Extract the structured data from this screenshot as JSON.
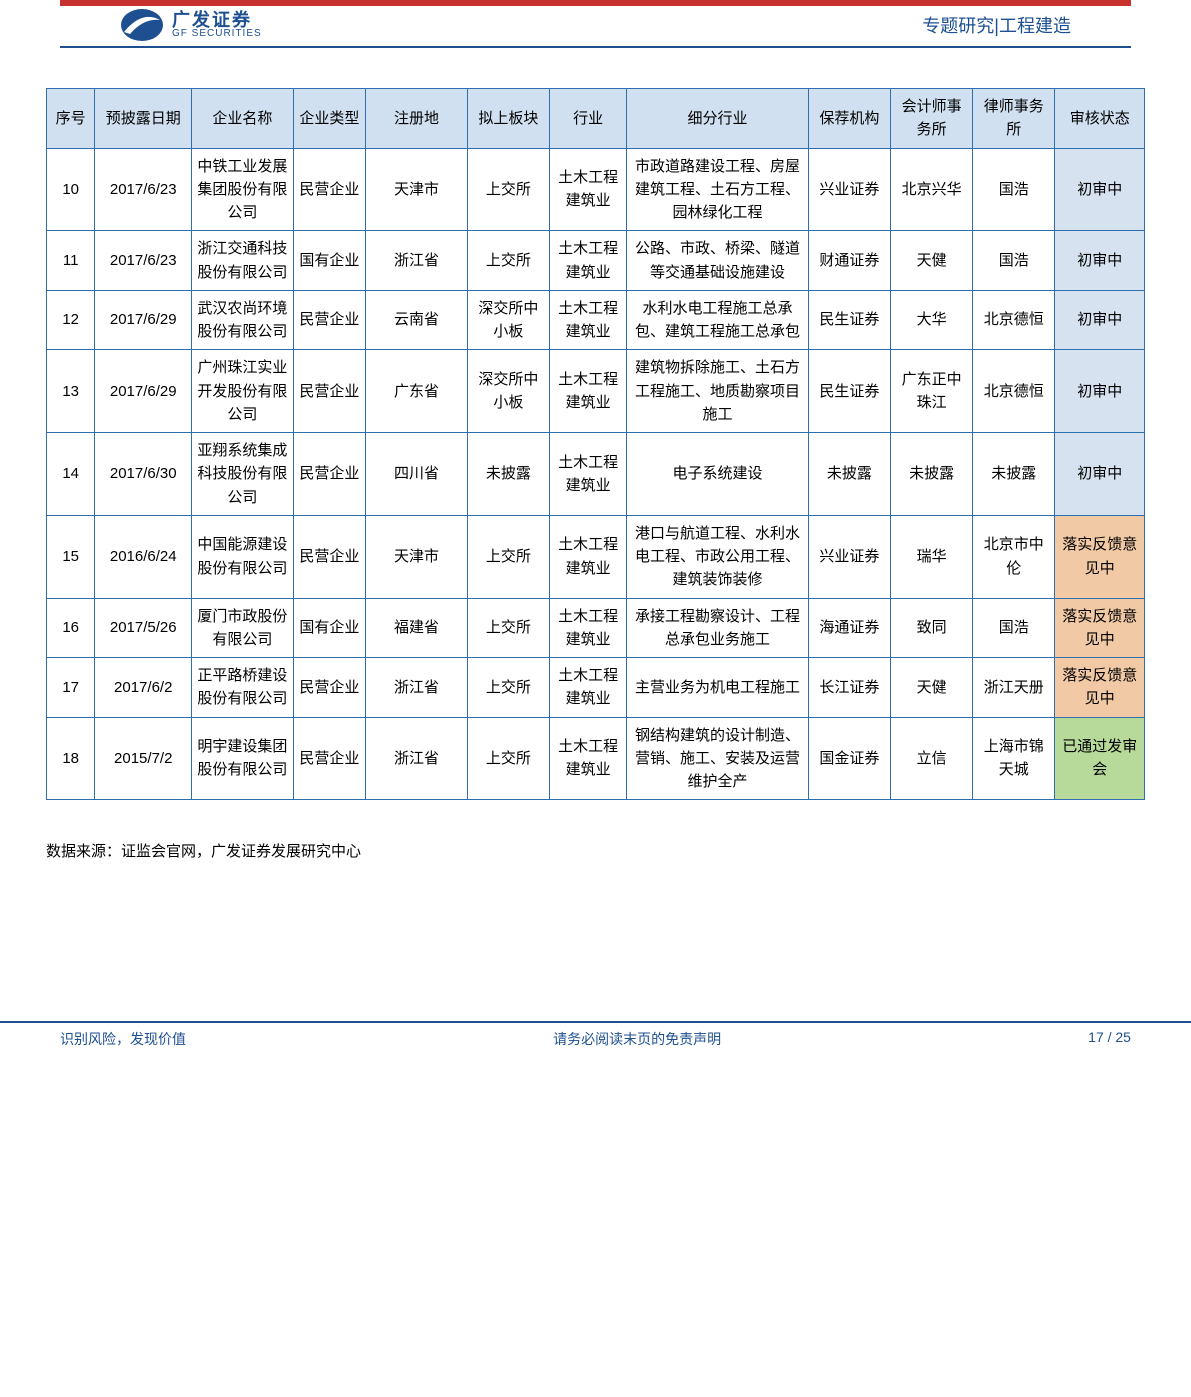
{
  "colors": {
    "brand": "#1d4f91",
    "border": "#2f6fb0",
    "header_bar": "#c7322f",
    "header_bg": "#d0e0f0",
    "status_review_bg": "#d6e2f0",
    "status_feedback_bg": "#f2c9a5",
    "status_pass_bg": "#b7d99a",
    "text": "#000000",
    "brand_text": "#1d4f91"
  },
  "header": {
    "logo_cn": "广发证券",
    "logo_en": "GF SECURITIES",
    "top_right": "专题研究|工程建造"
  },
  "table": {
    "columns": [
      "序号",
      "预披露日期",
      "企业名称",
      "企业类型",
      "注册地",
      "拟上板块",
      "行业",
      "细分行业",
      "保荐机构",
      "会计师事务所",
      "律师事务所",
      "审核状态"
    ],
    "rows": [
      {
        "seq": "10",
        "date": "2017/6/23",
        "name": "中铁工业发展集团股份有限公司",
        "type": "民营企业",
        "reg": "天津市",
        "plate": "上交所",
        "ind": "土木工程建筑业",
        "sub": "市政道路建设工程、房屋建筑工程、土石方工程、园林绿化工程",
        "bank": "兴业证券",
        "acc": "北京兴华",
        "law": "国浩",
        "status": "初审中",
        "status_key": "review"
      },
      {
        "seq": "11",
        "date": "2017/6/23",
        "name": "浙江交通科技股份有限公司",
        "type": "国有企业",
        "reg": "浙江省",
        "plate": "上交所",
        "ind": "土木工程建筑业",
        "sub": "公路、市政、桥梁、隧道等交通基础设施建设",
        "bank": "财通证券",
        "acc": "天健",
        "law": "国浩",
        "status": "初审中",
        "status_key": "review"
      },
      {
        "seq": "12",
        "date": "2017/6/29",
        "name": "武汉农尚环境股份有限公司",
        "type": "民营企业",
        "reg": "云南省",
        "plate": "深交所中小板",
        "ind": "土木工程建筑业",
        "sub": "水利水电工程施工总承包、建筑工程施工总承包",
        "bank": "民生证券",
        "acc": "大华",
        "law": "北京德恒",
        "status": "初审中",
        "status_key": "review"
      },
      {
        "seq": "13",
        "date": "2017/6/29",
        "name": "广州珠江实业开发股份有限公司",
        "type": "民营企业",
        "reg": "广东省",
        "plate": "深交所中小板",
        "ind": "土木工程建筑业",
        "sub": "建筑物拆除施工、土石方工程施工、地质勘察项目施工",
        "bank": "民生证券",
        "acc": "广东正中珠江",
        "law": "北京德恒",
        "status": "初审中",
        "status_key": "review"
      },
      {
        "seq": "14",
        "date": "2017/6/30",
        "name": "亚翔系统集成科技股份有限公司",
        "type": "民营企业",
        "reg": "四川省",
        "plate": "未披露",
        "ind": "土木工程建筑业",
        "sub": "电子系统建设",
        "bank": "未披露",
        "acc": "未披露",
        "law": "未披露",
        "status": "初审中",
        "status_key": "review"
      },
      {
        "seq": "15",
        "date": "2016/6/24",
        "name": "中国能源建设股份有限公司",
        "type": "民营企业",
        "reg": "天津市",
        "plate": "上交所",
        "ind": "土木工程建筑业",
        "sub": "港口与航道工程、水利水电工程、市政公用工程、建筑装饰装修",
        "bank": "兴业证券",
        "acc": "瑞华",
        "law": "北京市中伦",
        "status": "落实反馈意见中",
        "status_key": "feedback"
      },
      {
        "seq": "16",
        "date": "2017/5/26",
        "name": "厦门市政股份有限公司",
        "type": "国有企业",
        "reg": "福建省",
        "plate": "上交所",
        "ind": "土木工程建筑业",
        "sub": "承接工程勘察设计、工程总承包业务施工",
        "bank": "海通证券",
        "acc": "致同",
        "law": "国浩",
        "status": "落实反馈意见中",
        "status_key": "feedback"
      },
      {
        "seq": "17",
        "date": "2017/6/2",
        "name": "正平路桥建设股份有限公司",
        "type": "民营企业",
        "reg": "浙江省",
        "plate": "上交所",
        "ind": "土木工程建筑业",
        "sub": "主营业务为机电工程施工",
        "bank": "长江证券",
        "acc": "天健",
        "law": "浙江天册",
        "status": "落实反馈意见中",
        "status_key": "feedback"
      },
      {
        "seq": "18",
        "date": "2015/7/2",
        "name": "明宇建设集团股份有限公司",
        "type": "民营企业",
        "reg": "浙江省",
        "plate": "上交所",
        "ind": "土木工程建筑业",
        "sub": "钢结构建筑的设计制造、营销、施工、安装及运营维护全产",
        "bank": "国金证券",
        "acc": "立信",
        "law": "上海市锦天城",
        "status": "已通过发审会",
        "status_key": "pass"
      }
    ]
  },
  "source": "数据来源：证监会官网，广发证券发展研究中心",
  "footer": {
    "left": "识别风险，发现价值",
    "center": "请务必阅读末页的免责声明",
    "page": "17 / 25"
  }
}
